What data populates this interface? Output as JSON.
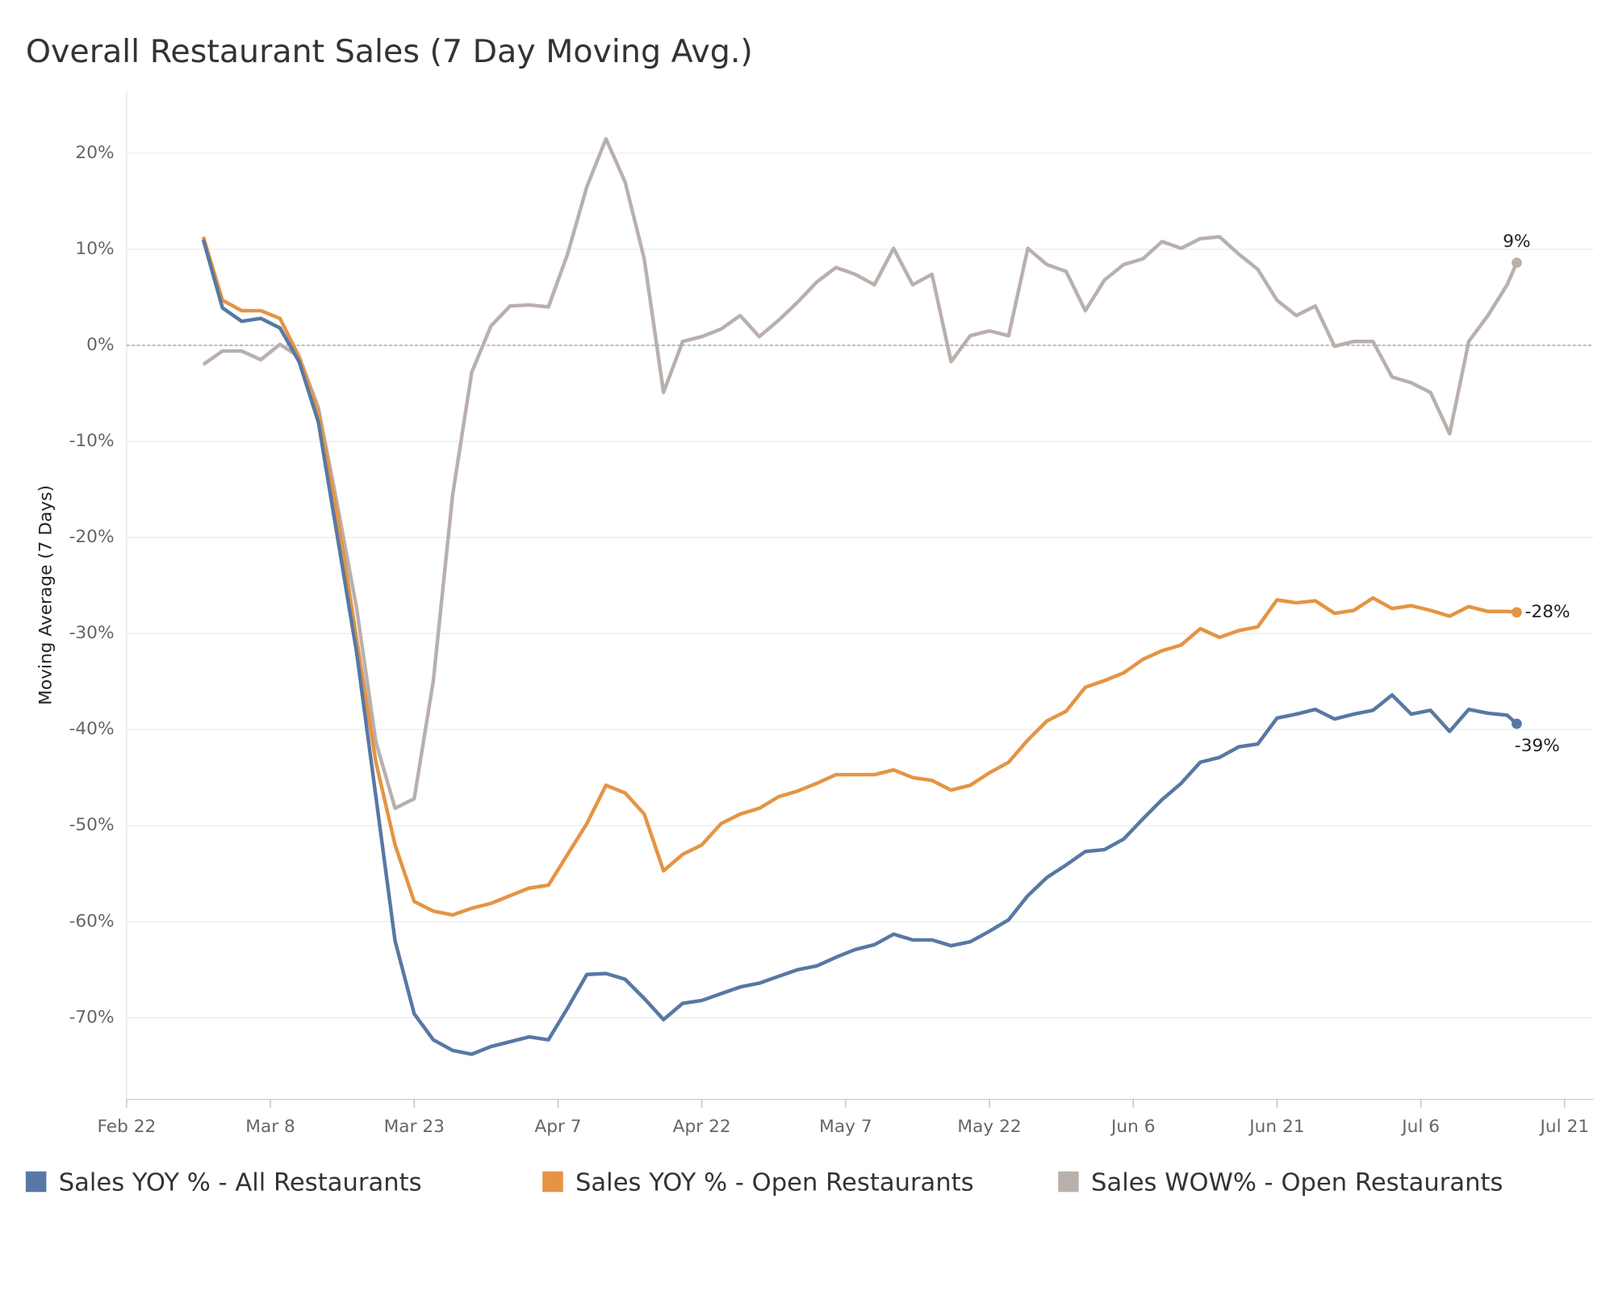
{
  "chart_data": {
    "type": "line",
    "title": "Overall Restaurant Sales (7 Day Moving Avg.)",
    "y_label": "Moving Average (7 Days)",
    "x": [
      "Mar 1",
      "Mar 3",
      "Mar 5",
      "Mar 7",
      "Mar 9",
      "Mar 11",
      "Mar 13",
      "Mar 15",
      "Mar 17",
      "Mar 19",
      "Mar 21",
      "Mar 23",
      "Mar 25",
      "Mar 27",
      "Mar 29",
      "Mar 31",
      "Apr 2",
      "Apr 4",
      "Apr 6",
      "Apr 8",
      "Apr 10",
      "Apr 12",
      "Apr 14",
      "Apr 16",
      "Apr 18",
      "Apr 20",
      "Apr 22",
      "Apr 24",
      "Apr 26",
      "Apr 28",
      "Apr 30",
      "May 2",
      "May 4",
      "May 6",
      "May 8",
      "May 10",
      "May 12",
      "May 14",
      "May 16",
      "May 18",
      "May 20",
      "May 22",
      "May 24",
      "May 26",
      "May 28",
      "May 30",
      "Jun 1",
      "Jun 3",
      "Jun 5",
      "Jun 7",
      "Jun 9",
      "Jun 11",
      "Jun 13",
      "Jun 15",
      "Jun 17",
      "Jun 19",
      "Jun 21",
      "Jun 23",
      "Jun 25",
      "Jun 27",
      "Jun 29",
      "Jul 1",
      "Jul 3",
      "Jul 5",
      "Jul 7",
      "Jul 9",
      "Jul 11",
      "Jul 13",
      "Jul 15",
      "Jul 16"
    ],
    "series": [
      {
        "name": "Sales YOY % - All Restaurants",
        "color": "#5778a4",
        "values": [
          11,
          3.9,
          2.5,
          2.8,
          1.8,
          -1.7,
          -8,
          -20,
          -32,
          -47,
          -62,
          -69.6,
          -72.3,
          -73.4,
          -73.8,
          -73,
          -72.5,
          -72,
          -72.3,
          -69,
          -65.5,
          -65.4,
          -66,
          -68,
          -70.2,
          -68.5,
          -68.2,
          -67.5,
          -66.8,
          -66.4,
          -65.7,
          -65,
          -64.6,
          -63.7,
          -62.9,
          -62.4,
          -61.3,
          -61.9,
          -61.9,
          -62.5,
          -62.1,
          -61,
          -59.8,
          -57.3,
          -55.4,
          -54.1,
          -52.7,
          -52.5,
          -51.4,
          -49.3,
          -47.3,
          -45.6,
          -43.4,
          -42.9,
          -41.8,
          -41.5,
          -38.8,
          -38.4,
          -37.9,
          -38.9,
          -38.4,
          -38,
          -36.4,
          -38.4,
          -38,
          -40.2,
          -37.9,
          -38.3,
          -38.5,
          -39.4
        ],
        "value_labels": [
          null,
          null,
          null,
          null,
          null,
          null,
          null,
          null,
          null,
          null,
          null,
          null,
          null,
          null,
          null,
          null,
          null,
          null,
          null,
          null,
          null,
          null,
          null,
          null,
          null,
          null,
          null,
          null,
          null,
          null,
          null,
          null,
          null,
          null,
          null,
          null,
          null,
          null,
          null,
          null,
          null,
          null,
          null,
          null,
          null,
          null,
          null,
          null,
          null,
          null,
          null,
          null,
          null,
          null,
          null,
          null,
          null,
          null,
          null,
          null,
          null,
          null,
          null,
          null,
          null,
          null,
          null,
          null,
          null,
          "-39%"
        ]
      },
      {
        "name": "Sales YOY % - Open Restaurants",
        "color": "#e49444",
        "values": [
          11.3,
          4.7,
          3.6,
          3.6,
          2.8,
          -1.2,
          -7,
          -17.8,
          -30.6,
          -43.4,
          -52,
          -57.9,
          -58.9,
          -59.3,
          -58.6,
          -58.1,
          -57.3,
          -56.5,
          -56.2,
          -53,
          -49.8,
          -45.8,
          -46.6,
          -48.8,
          -54.7,
          -53,
          -52,
          -49.8,
          -48.8,
          -48.2,
          -47,
          -46.4,
          -45.6,
          -44.7,
          -44.7,
          -44.7,
          -44.2,
          -45,
          -45.3,
          -46.3,
          -45.8,
          -44.5,
          -43.4,
          -41.1,
          -39.1,
          -38.1,
          -35.6,
          -34.9,
          -34.1,
          -32.7,
          -31.8,
          -31.2,
          -29.5,
          -30.4,
          -29.7,
          -29.3,
          -26.5,
          -26.8,
          -26.6,
          -27.9,
          -27.6,
          -26.3,
          -27.4,
          -27.1,
          -27.6,
          -28.2,
          -27.2,
          -27.7,
          -27.7,
          -27.8
        ],
        "value_labels": [
          null,
          null,
          null,
          null,
          null,
          null,
          null,
          null,
          null,
          null,
          null,
          null,
          null,
          null,
          null,
          null,
          null,
          null,
          null,
          null,
          null,
          null,
          null,
          null,
          null,
          null,
          null,
          null,
          null,
          null,
          null,
          null,
          null,
          null,
          null,
          null,
          null,
          null,
          null,
          null,
          null,
          null,
          null,
          null,
          null,
          null,
          null,
          null,
          null,
          null,
          null,
          null,
          null,
          null,
          null,
          null,
          null,
          null,
          null,
          null,
          null,
          null,
          null,
          null,
          null,
          null,
          null,
          null,
          null,
          "-28%"
        ]
      },
      {
        "name": "Sales WOW% - Open Restaurants",
        "color": "#b9b0ac",
        "values": [
          -2,
          -0.6,
          -0.6,
          -1.5,
          0.1,
          -1.2,
          -6.5,
          -16.7,
          -27.4,
          -41.3,
          -48.2,
          -47.2,
          -34.9,
          -15.6,
          -2.8,
          2,
          4.1,
          4.2,
          4,
          9.5,
          16.5,
          21.5,
          17,
          9,
          -4.9,
          0.4,
          0.9,
          1.7,
          3.1,
          0.9,
          2.6,
          4.5,
          6.6,
          8.1,
          7.4,
          6.3,
          10.1,
          6.3,
          7.4,
          -1.7,
          1,
          1.5,
          1,
          10.1,
          8.4,
          7.7,
          3.6,
          6.8,
          8.4,
          9,
          10.8,
          10.1,
          11.1,
          11.3,
          9.5,
          7.9,
          4.7,
          3.1,
          4.1,
          -0.1,
          0.4,
          0.4,
          -3.3,
          -3.9,
          -4.9,
          -9.2,
          0.4,
          3.1,
          6.3,
          8.6
        ],
        "value_labels": [
          null,
          null,
          null,
          null,
          null,
          null,
          null,
          null,
          null,
          null,
          null,
          null,
          null,
          null,
          null,
          null,
          null,
          null,
          null,
          null,
          null,
          null,
          null,
          null,
          null,
          null,
          null,
          null,
          null,
          null,
          null,
          null,
          null,
          null,
          null,
          null,
          null,
          null,
          null,
          null,
          null,
          null,
          null,
          null,
          null,
          null,
          null,
          null,
          null,
          null,
          null,
          null,
          null,
          null,
          null,
          null,
          null,
          null,
          null,
          null,
          null,
          null,
          null,
          null,
          null,
          null,
          null,
          null,
          null,
          "9%"
        ]
      }
    ],
    "xlim": [
      "Feb 22",
      "Jul 24"
    ],
    "xticks": [
      "Feb 22",
      "Mar 8",
      "Mar 23",
      "Apr 7",
      "Apr 22",
      "May 7",
      "May 22",
      "Jun 6",
      "Jun 21",
      "Jul 6",
      "Jul 21"
    ],
    "ylim": [
      -78.5,
      26.5
    ],
    "yticks": [
      {
        "value": -70,
        "label": "-70%"
      },
      {
        "value": -60,
        "label": "-60%"
      },
      {
        "value": -50,
        "label": "-50%"
      },
      {
        "value": -40,
        "label": "-40%"
      },
      {
        "value": -30,
        "label": "-30%"
      },
      {
        "value": -20,
        "label": "-20%"
      },
      {
        "value": -10,
        "label": "-10%"
      },
      {
        "value": 0,
        "label": "0%"
      },
      {
        "value": 10,
        "label": "10%"
      },
      {
        "value": 20,
        "label": "20%"
      }
    ],
    "grid": true,
    "zero_line": true,
    "legend": "bottom"
  }
}
